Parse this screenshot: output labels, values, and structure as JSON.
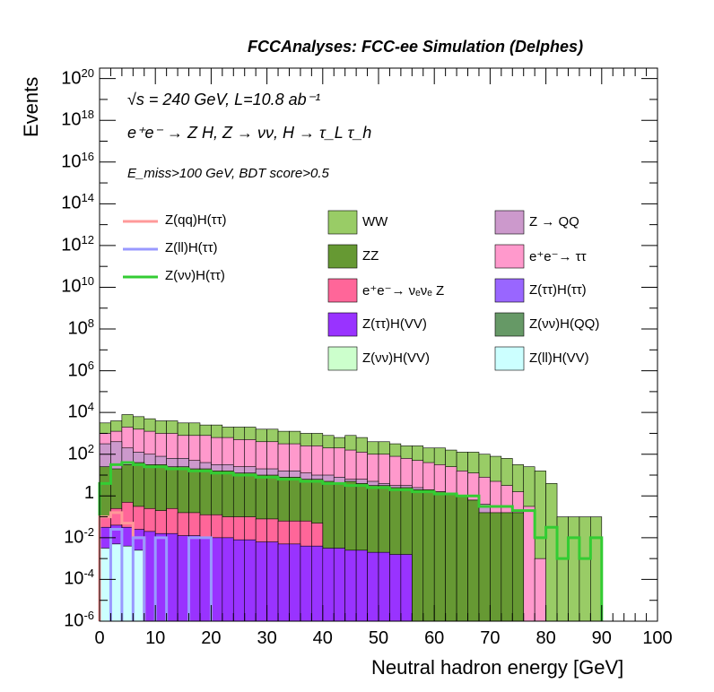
{
  "header": "FCCAnalyses: FCC-ee Simulation (Delphes)",
  "annotations": {
    "line1": "√s = 240 GeV, L=10.8 ab⁻¹",
    "line2": "e⁺e⁻ → Z H, Z → νν, H → τ_L τ_h",
    "line3": "E_miss>100 GeV, BDT score>0.5"
  },
  "colors": {
    "WW": "#99cc66",
    "ZZ": "#669933",
    "Z_QQ": "#cc99cc",
    "ee_tautau": "#ff99cc",
    "ee_nunuZ": "#ff6699",
    "ZtautauHtautau": "#9966ff",
    "ZtautauHVV": "#9933ff",
    "ZnunuHQQ": "#669966",
    "ZnunuHVV": "#ccffcc",
    "ZllHVV": "#ccffff",
    "ZqqHtautau": "#ff9999",
    "ZllHtautau": "#9999ff",
    "ZnunuHtautau": "#33cc33"
  },
  "chart_data": {
    "type": "histogram-stacked-log",
    "title": "FCCAnalyses: FCC-ee Simulation (Delphes)",
    "xlabel": "Neutral hadron energy [GeV]",
    "ylabel": "Events",
    "xlim": [
      0,
      100
    ],
    "ylim_log10": [
      -6,
      20.5
    ],
    "bin_edges": [
      0,
      2,
      4,
      6,
      8,
      10,
      12,
      14,
      16,
      18,
      20,
      22,
      24,
      26,
      28,
      30,
      32,
      34,
      36,
      38,
      40,
      42,
      44,
      46,
      48,
      50,
      52,
      54,
      56,
      58,
      60,
      62,
      64,
      66,
      68,
      70,
      72,
      74,
      76,
      78,
      80,
      82,
      84,
      86,
      88,
      90
    ],
    "x_ticks": [
      0,
      10,
      20,
      30,
      40,
      50,
      60,
      70,
      80,
      90,
      100
    ],
    "x_tick_labels": [
      "0",
      "10",
      "20",
      "30",
      "40",
      "50",
      "60",
      "70",
      "80",
      "90",
      "100"
    ],
    "y_ticks": [
      {
        "base": "10",
        "exp": "20",
        "log": 20
      },
      {
        "base": "10",
        "exp": "18",
        "log": 18
      },
      {
        "base": "10",
        "exp": "16",
        "log": 16
      },
      {
        "base": "10",
        "exp": "14",
        "log": 14
      },
      {
        "base": "10",
        "exp": "12",
        "log": 12
      },
      {
        "base": "10",
        "exp": "10",
        "log": 10
      },
      {
        "base": "10",
        "exp": "8",
        "log": 8
      },
      {
        "base": "10",
        "exp": "6",
        "log": 6
      },
      {
        "base": "10",
        "exp": "4",
        "log": 4
      },
      {
        "base": "10",
        "exp": "2",
        "log": 2
      },
      {
        "base": "1",
        "exp": "",
        "log": 0
      },
      {
        "base": "10",
        "exp": "-2",
        "log": -2
      },
      {
        "base": "10",
        "exp": "-4",
        "log": -4
      },
      {
        "base": "10",
        "exp": "-6",
        "log": -6
      }
    ],
    "stack_totals_log10": [
      {
        "name": "WW",
        "color": "#99cc66",
        "values": [
          3.5,
          3.6,
          3.9,
          3.8,
          3.7,
          3.6,
          3.6,
          3.5,
          3.5,
          3.4,
          3.4,
          3.3,
          3.3,
          3.3,
          3.2,
          3.2,
          3.1,
          3.1,
          3.0,
          3.0,
          2.9,
          2.8,
          2.9,
          2.8,
          2.6,
          2.6,
          2.5,
          2.4,
          2.4,
          2.3,
          2.3,
          2.2,
          2.1,
          2.1,
          2.0,
          1.9,
          1.8,
          1.5,
          1.4,
          1.2,
          0.6,
          -1.0,
          -1.0,
          -1.0,
          -1.0
        ]
      },
      {
        "name": "e⁺e⁻ → ττ",
        "color": "#ff99cc",
        "values": [
          3.0,
          3.1,
          3.3,
          3.2,
          3.1,
          3.0,
          3.0,
          2.9,
          2.9,
          2.9,
          2.8,
          2.8,
          2.7,
          2.7,
          2.6,
          2.6,
          2.5,
          2.5,
          2.4,
          2.4,
          2.3,
          2.3,
          2.2,
          2.1,
          2.0,
          2.0,
          1.9,
          1.8,
          1.7,
          1.6,
          1.5,
          1.4,
          1.2,
          1.1,
          0.9,
          0.7,
          0.5,
          0.2,
          -0.5,
          -3.0,
          -6.0,
          -6.0,
          -6.0,
          -6.0,
          -6.0
        ]
      },
      {
        "name": "Z → QQ",
        "color": "#cc99cc",
        "values": [
          2.5,
          2.6,
          2.3,
          2.1,
          2.0,
          1.9,
          1.8,
          1.8,
          1.7,
          1.6,
          1.5,
          1.5,
          1.4,
          1.4,
          1.3,
          1.3,
          1.2,
          1.2,
          1.1,
          1.0,
          1.0,
          0.9,
          0.8,
          0.8,
          0.7,
          0.6,
          0.5,
          0.5,
          0.4,
          0.3,
          0.2,
          0.1,
          0.0,
          -0.2,
          -0.4,
          -1.5,
          -6.0,
          -6.0,
          -6.0,
          -6.0,
          -6.0,
          -6.0,
          -6.0,
          -6.0,
          -6.0
        ]
      },
      {
        "name": "ZZ",
        "color": "#669933",
        "values": [
          1.4,
          1.3,
          1.5,
          1.6,
          1.5,
          1.5,
          1.4,
          1.4,
          1.3,
          1.3,
          1.2,
          1.2,
          1.1,
          1.1,
          1.0,
          1.0,
          0.9,
          0.9,
          0.8,
          0.8,
          0.7,
          0.6,
          0.7,
          0.6,
          0.5,
          0.5,
          0.4,
          0.4,
          0.3,
          0.3,
          0.2,
          0.1,
          0.0,
          -0.2,
          -0.8,
          -0.8,
          -0.8,
          -0.8,
          -6.0,
          -6.0,
          -6.0,
          -6.0,
          -6.0,
          -6.0,
          -6.0
        ]
      },
      {
        "name": "e⁺e⁻ → νₑνₑ Z",
        "color": "#ff6699",
        "values": [
          -1.0,
          -0.6,
          -0.3,
          -0.5,
          -0.6,
          -0.7,
          -0.6,
          -0.8,
          -0.8,
          -0.9,
          -0.9,
          -1.0,
          -1.0,
          -1.0,
          -1.1,
          -1.1,
          -1.2,
          -1.2,
          -1.2,
          -1.3,
          -6.0,
          -6.0,
          -6.0,
          -6.0,
          -6.0,
          -6.0,
          -6.0,
          -6.0,
          -6.0,
          -6.0,
          -6.0,
          -6.0,
          -6.0,
          -6.0,
          -6.0,
          -6.0,
          -6.0,
          -6.0,
          -6.0,
          -6.0,
          -6.0,
          -6.0,
          -6.0,
          -6.0,
          -6.0
        ]
      },
      {
        "name": "Z(ττ)H(VV)",
        "color": "#9933ff",
        "values": [
          -1.5,
          -1.4,
          -1.5,
          -1.6,
          -1.7,
          -1.8,
          -1.8,
          -1.9,
          -1.9,
          -2.0,
          -2.0,
          -2.0,
          -2.1,
          -2.1,
          -2.2,
          -2.2,
          -2.3,
          -2.3,
          -2.4,
          -2.4,
          -2.5,
          -2.5,
          -2.6,
          -2.6,
          -2.7,
          -2.7,
          -2.8,
          -2.8,
          -6.0,
          -6.0,
          -6.0,
          -6.0,
          -6.0,
          -6.0,
          -6.0,
          -6.0,
          -6.0,
          -6.0,
          -6.0,
          -6.0,
          -6.0,
          -6.0,
          -6.0,
          -6.0,
          -6.0
        ]
      },
      {
        "name": "Z(ll)H(VV)",
        "color": "#ccffff",
        "values": [
          -2.5,
          -2.3,
          -2.4,
          -2.6,
          -6.0,
          -6.0,
          -6.0,
          -6.0,
          -6.0,
          -6.0,
          -6.0,
          -6.0,
          -6.0,
          -6.0,
          -6.0,
          -6.0,
          -6.0,
          -6.0,
          -6.0,
          -6.0,
          -6.0,
          -6.0,
          -6.0,
          -6.0,
          -6.0,
          -6.0,
          -6.0,
          -6.0,
          -6.0,
          -6.0,
          -6.0,
          -6.0,
          -6.0,
          -6.0,
          -6.0,
          -6.0,
          -6.0,
          -6.0,
          -6.0,
          -6.0,
          -6.0,
          -6.0,
          -6.0,
          -6.0,
          -6.0
        ]
      }
    ],
    "signal_lines_log10": [
      {
        "name": "Z(νν)H(ττ)",
        "color": "#33cc33",
        "values": [
          0.6,
          1.5,
          1.6,
          1.5,
          1.4,
          1.4,
          1.3,
          1.3,
          1.2,
          1.2,
          1.1,
          1.1,
          1.0,
          1.0,
          0.9,
          0.9,
          0.8,
          0.8,
          0.7,
          0.7,
          0.6,
          0.6,
          0.5,
          0.5,
          0.4,
          0.4,
          0.3,
          0.3,
          0.2,
          0.2,
          0.1,
          0.1,
          0.0,
          0.0,
          -0.5,
          -0.5,
          -0.5,
          -0.7,
          -0.7,
          -2.0,
          -1.5,
          -3.0,
          -2.0,
          -3.0,
          -2.0
        ]
      },
      {
        "name": "Z(qq)H(ττ)",
        "color": "#ff9999",
        "values": [
          -1.0,
          -0.8,
          -1.3,
          -2.0,
          -6.0,
          -6.0,
          -6.0,
          -6.0,
          -6.0,
          -6.0,
          -6.0,
          -6.0,
          -6.0,
          -6.0,
          -6.0,
          -6.0,
          -6.0,
          -6.0,
          -6.0,
          -6.0,
          -6.0,
          -6.0,
          -6.0,
          -6.0,
          -6.0,
          -6.0,
          -6.0,
          -6.0,
          -6.0,
          -6.0,
          -6.0,
          -6.0,
          -6.0,
          -6.0,
          -6.0,
          -6.0,
          -6.0,
          -6.0,
          -6.0,
          -6.0,
          -6.0,
          -6.0,
          -6.0,
          -6.0,
          -6.0
        ]
      },
      {
        "name": "Z(ll)H(ττ)",
        "color": "#9999ff",
        "values": [
          -6.0,
          -1.6,
          -6.0,
          -2.0,
          -6.0,
          -2.0,
          -6.0,
          -6.0,
          -2.0,
          -2.0,
          -6.0,
          -6.0,
          -6.0,
          -6.0,
          -6.0,
          -6.0,
          -6.0,
          -6.0,
          -6.0,
          -6.0,
          -6.0,
          -6.0,
          -6.0,
          -6.0,
          -6.0,
          -6.0,
          -6.0,
          -6.0,
          -6.0,
          -6.0,
          -6.0,
          -6.0,
          -6.0,
          -6.0,
          -6.0,
          -6.0,
          -6.0,
          -6.0,
          -6.0,
          -6.0,
          -6.0,
          -6.0,
          -6.0,
          -6.0,
          -6.0
        ]
      }
    ],
    "legend_lines": [
      {
        "label": "Z(qq)H(ττ)",
        "color": "#ff9999"
      },
      {
        "label": "Z(ll)H(ττ)",
        "color": "#9999ff"
      },
      {
        "label": "Z(νν)H(ττ)",
        "color": "#33cc33"
      }
    ],
    "legend_boxes": [
      {
        "label": "WW",
        "color": "#99cc66"
      },
      {
        "label": "Z → QQ",
        "color": "#cc99cc"
      },
      {
        "label": "ZZ",
        "color": "#669933"
      },
      {
        "label": "e⁺e⁻→ ττ",
        "color": "#ff99cc"
      },
      {
        "label": "e⁺e⁻→ νₑνₑ Z",
        "color": "#ff6699"
      },
      {
        "label": "Z(ττ)H(ττ)",
        "color": "#9966ff"
      },
      {
        "label": "Z(ττ)H(VV)",
        "color": "#9933ff"
      },
      {
        "label": "Z(νν)H(QQ)",
        "color": "#669966"
      },
      {
        "label": "Z(νν)H(VV)",
        "color": "#ccffcc"
      },
      {
        "label": "Z(ll)H(VV)",
        "color": "#ccffff"
      }
    ],
    "legend_placement": "top",
    "grid": false
  }
}
